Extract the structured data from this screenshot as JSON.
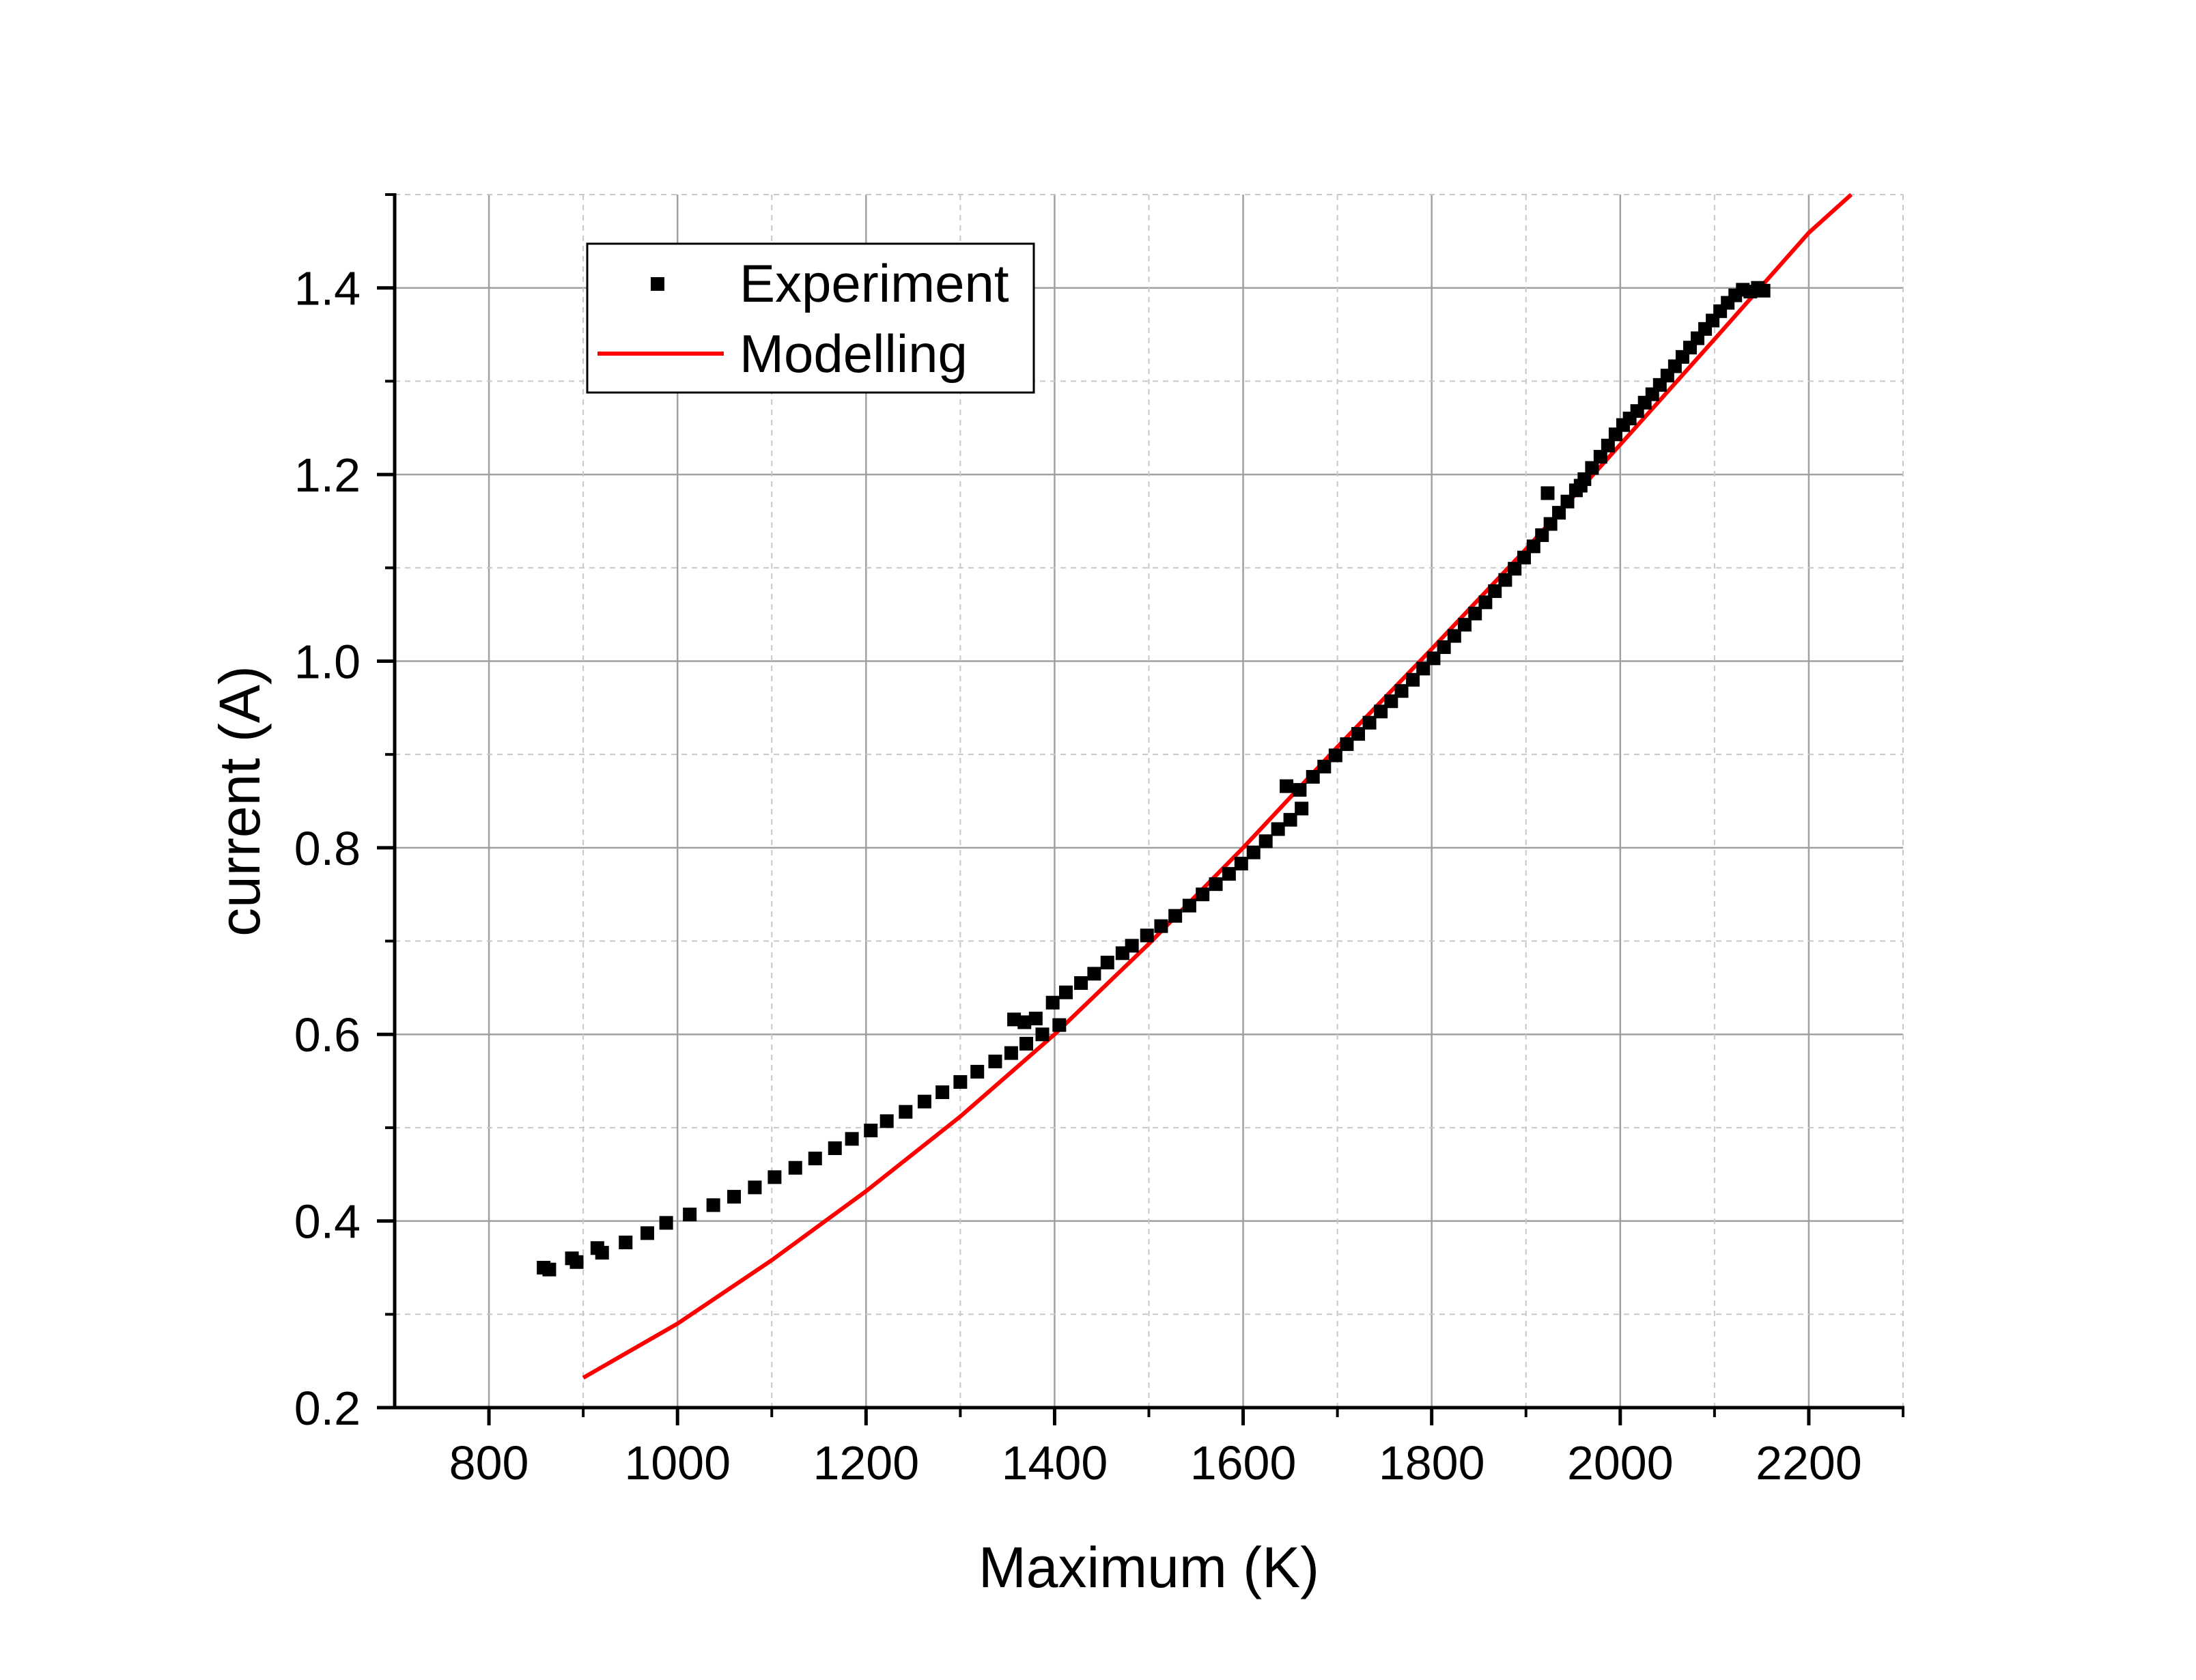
{
  "chart_data": {
    "type": "scatter",
    "xlabel": "Maximum (K)",
    "ylabel": "current (A)",
    "xlim": [
      700,
      2300
    ],
    "ylim": [
      0.2,
      1.5
    ],
    "x_ticks": [
      800,
      1000,
      1200,
      1400,
      1600,
      1800,
      2000,
      2200
    ],
    "x_tick_labels": [
      "800",
      "1000",
      "1200",
      "1400",
      "1600",
      "1800",
      "2000",
      "2200"
    ],
    "y_ticks": [
      0.2,
      0.4,
      0.6,
      0.8,
      1.0,
      1.2,
      1.4
    ],
    "y_tick_labels": [
      "0.2",
      "0.4",
      "0.6",
      "0.8",
      "1.0",
      "1.2",
      "1.4"
    ],
    "grid": true,
    "legend_position": "top-left",
    "series": [
      {
        "name": "Experiment",
        "kind": "scatter",
        "marker": "square",
        "color": "#000000",
        "points": [
          [
            858,
            0.35
          ],
          [
            864,
            0.348
          ],
          [
            888,
            0.36
          ],
          [
            893,
            0.356
          ],
          [
            915,
            0.371
          ],
          [
            920,
            0.366
          ],
          [
            945,
            0.377
          ],
          [
            968,
            0.387
          ],
          [
            988,
            0.398
          ],
          [
            1013,
            0.407
          ],
          [
            1038,
            0.417
          ],
          [
            1060,
            0.426
          ],
          [
            1082,
            0.436
          ],
          [
            1103,
            0.447
          ],
          [
            1125,
            0.457
          ],
          [
            1146,
            0.467
          ],
          [
            1167,
            0.478
          ],
          [
            1185,
            0.488
          ],
          [
            1205,
            0.497
          ],
          [
            1222,
            0.507
          ],
          [
            1242,
            0.517
          ],
          [
            1262,
            0.528
          ],
          [
            1281,
            0.538
          ],
          [
            1300,
            0.549
          ],
          [
            1318,
            0.56
          ],
          [
            1337,
            0.571
          ],
          [
            1354,
            0.58
          ],
          [
            1370,
            0.59
          ],
          [
            1387,
            0.6
          ],
          [
            1405,
            0.61
          ],
          [
            1357,
            0.616
          ],
          [
            1368,
            0.613
          ],
          [
            1380,
            0.617
          ],
          [
            1398,
            0.634
          ],
          [
            1412,
            0.645
          ],
          [
            1428,
            0.655
          ],
          [
            1442,
            0.665
          ],
          [
            1456,
            0.677
          ],
          [
            1472,
            0.687
          ],
          [
            1482,
            0.695
          ],
          [
            1498,
            0.706
          ],
          [
            1513,
            0.716
          ],
          [
            1528,
            0.727
          ],
          [
            1543,
            0.738
          ],
          [
            1557,
            0.75
          ],
          [
            1571,
            0.761
          ],
          [
            1585,
            0.772
          ],
          [
            1598,
            0.783
          ],
          [
            1611,
            0.795
          ],
          [
            1624,
            0.807
          ],
          [
            1637,
            0.82
          ],
          [
            1650,
            0.83
          ],
          [
            1662,
            0.842
          ],
          [
            1646,
            0.866
          ],
          [
            1660,
            0.862
          ],
          [
            1674,
            0.876
          ],
          [
            1686,
            0.887
          ],
          [
            1698,
            0.899
          ],
          [
            1710,
            0.911
          ],
          [
            1722,
            0.922
          ],
          [
            1734,
            0.934
          ],
          [
            1746,
            0.946
          ],
          [
            1757,
            0.957
          ],
          [
            1768,
            0.968
          ],
          [
            1780,
            0.98
          ],
          [
            1791,
            0.992
          ],
          [
            1802,
            1.003
          ],
          [
            1813,
            1.015
          ],
          [
            1824,
            1.027
          ],
          [
            1835,
            1.039
          ],
          [
            1846,
            1.051
          ],
          [
            1857,
            1.063
          ],
          [
            1867,
            1.075
          ],
          [
            1878,
            1.087
          ],
          [
            1888,
            1.099
          ],
          [
            1898,
            1.111
          ],
          [
            1908,
            1.123
          ],
          [
            1917,
            1.135
          ],
          [
            1926,
            1.147
          ],
          [
            1923,
            1.18
          ],
          [
            1935,
            1.159
          ],
          [
            1944,
            1.171
          ],
          [
            1953,
            1.183
          ],
          [
            1958,
            1.188
          ],
          [
            1962,
            1.195
          ],
          [
            1970,
            1.207
          ],
          [
            1979,
            1.219
          ],
          [
            1987,
            1.231
          ],
          [
            1995,
            1.243
          ],
          [
            2003,
            1.253
          ],
          [
            2010,
            1.26
          ],
          [
            2018,
            1.268
          ],
          [
            2026,
            1.277
          ],
          [
            2034,
            1.286
          ],
          [
            2042,
            1.296
          ],
          [
            2050,
            1.306
          ],
          [
            2058,
            1.316
          ],
          [
            2066,
            1.326
          ],
          [
            2074,
            1.336
          ],
          [
            2082,
            1.346
          ],
          [
            2090,
            1.356
          ],
          [
            2098,
            1.365
          ],
          [
            2106,
            1.375
          ],
          [
            2114,
            1.384
          ],
          [
            2122,
            1.392
          ],
          [
            2130,
            1.398
          ],
          [
            2138,
            1.396
          ],
          [
            2146,
            1.4
          ],
          [
            2152,
            1.397
          ]
        ]
      },
      {
        "name": "Modelling",
        "kind": "line",
        "color": "#ff0000",
        "points": [
          [
            900,
            0.232
          ],
          [
            1000,
            0.29
          ],
          [
            1100,
            0.358
          ],
          [
            1200,
            0.432
          ],
          [
            1300,
            0.512
          ],
          [
            1400,
            0.6
          ],
          [
            1500,
            0.697
          ],
          [
            1600,
            0.8
          ],
          [
            1700,
            0.908
          ],
          [
            1800,
            1.013
          ],
          [
            1900,
            1.12
          ],
          [
            2000,
            1.232
          ],
          [
            2100,
            1.345
          ],
          [
            2200,
            1.459
          ],
          [
            2245,
            1.5
          ]
        ]
      }
    ]
  }
}
